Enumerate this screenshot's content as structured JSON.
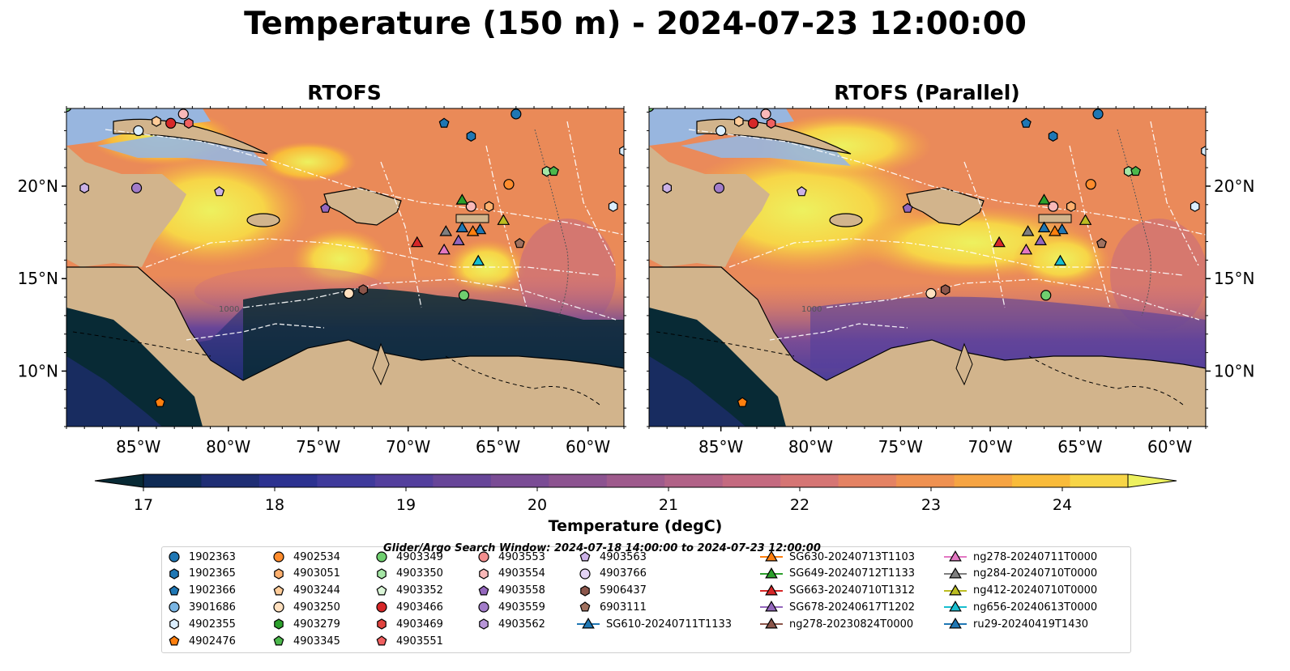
{
  "title": "Temperature (150 m) - 2024-07-23 12:00:00",
  "chart_data": [
    {
      "type": "heatmap",
      "title": "RTOFS",
      "x_ticks": [
        "85°W",
        "80°W",
        "75°W",
        "70°W",
        "65°W",
        "60°W"
      ],
      "x_tick_values": [
        -85,
        -80,
        -75,
        -70,
        -65,
        -60
      ],
      "y_ticks": [
        "20°N",
        "15°N",
        "10°N"
      ],
      "y_tick_values": [
        20,
        15,
        10
      ],
      "xlim": [
        -89,
        -58
      ],
      "ylim": [
        7,
        24.2
      ],
      "contour_label": "1000",
      "gliders": [
        "SG610-20240711T1133",
        "SG630-20240713T1103",
        "SG649-20240712T1133",
        "SG663-20240710T1312",
        "SG678-20240617T1202",
        "ng278-20240711T0000",
        "ng284-20240710T0000",
        "ng412-20240710T0000",
        "ng656-20240613T0000",
        "ru29-20240419T1430"
      ]
    },
    {
      "type": "heatmap",
      "title": "RTOFS (Parallel)",
      "x_ticks": [
        "85°W",
        "80°W",
        "75°W",
        "70°W",
        "65°W",
        "60°W"
      ],
      "x_tick_values": [
        -85,
        -80,
        -75,
        -70,
        -65,
        -60
      ],
      "y_ticks": [
        "20°N",
        "15°N",
        "10°N"
      ],
      "y_tick_values": [
        20,
        15,
        10
      ],
      "xlim": [
        -89,
        -58
      ],
      "ylim": [
        7,
        24.2
      ],
      "contour_label": "1000"
    }
  ],
  "colorbar": {
    "label": "Temperature (degC)",
    "ticks": [
      "17",
      "18",
      "19",
      "20",
      "21",
      "22",
      "23",
      "24"
    ],
    "tick_values": [
      17,
      18,
      19,
      20,
      21,
      22,
      23,
      24
    ],
    "min": 17,
    "max": 24.5,
    "step": 0.5,
    "colors": [
      "#082a35",
      "#0f2b55",
      "#1f2e74",
      "#2c3290",
      "#3f3a9b",
      "#533f9d",
      "#674598",
      "#7a4c95",
      "#8c5390",
      "#9e5a8c",
      "#b16287",
      "#c46a80",
      "#d57574",
      "#e48263",
      "#ef9151",
      "#f6a443",
      "#f9bb3a",
      "#f7d547",
      "#edf15f"
    ]
  },
  "legend": {
    "title": "Glider/Argo Search Window: 2024-07-18 14:00:00 to 2024-07-23 12:00:00",
    "columns": [
      [
        {
          "label": "1902363",
          "marker": "circle",
          "color": "#1f77b4"
        },
        {
          "label": "1902365",
          "marker": "hexagon",
          "color": "#1f77b4"
        },
        {
          "label": "1902366",
          "marker": "pentagon",
          "color": "#1f77b4"
        },
        {
          "label": "3901686",
          "marker": "circle",
          "color": "#7ab5e3"
        },
        {
          "label": "4902355",
          "marker": "hexagon",
          "color": "#dbeeff"
        },
        {
          "label": "4902476",
          "marker": "pentagon",
          "color": "#ff7f0e"
        }
      ],
      [
        {
          "label": "4902534",
          "marker": "circle",
          "color": "#ff8c2d"
        },
        {
          "label": "4903051",
          "marker": "hexagon",
          "color": "#ffb06e"
        },
        {
          "label": "4903244",
          "marker": "pentagon",
          "color": "#ffcc99"
        },
        {
          "label": "4903250",
          "marker": "circle",
          "color": "#ffe0bf"
        },
        {
          "label": "4903279",
          "marker": "hexagon",
          "color": "#2ca02c"
        },
        {
          "label": "4903345",
          "marker": "pentagon",
          "color": "#4cb84c"
        }
      ],
      [
        {
          "label": "4903349",
          "marker": "circle",
          "color": "#6fcf6f"
        },
        {
          "label": "4903350",
          "marker": "hexagon",
          "color": "#a5e6a5"
        },
        {
          "label": "4903352",
          "marker": "pentagon",
          "color": "#dcf7d9"
        },
        {
          "label": "4903466",
          "marker": "circle",
          "color": "#d62728"
        },
        {
          "label": "4903469",
          "marker": "hexagon",
          "color": "#e0443f"
        },
        {
          "label": "4903551",
          "marker": "pentagon",
          "color": "#f06060"
        }
      ],
      [
        {
          "label": "4903553",
          "marker": "circle",
          "color": "#f28e8e"
        },
        {
          "label": "4903554",
          "marker": "hexagon",
          "color": "#f9b8b8"
        },
        {
          "label": "4903558",
          "marker": "pentagon",
          "color": "#9467bd"
        },
        {
          "label": "4903559",
          "marker": "circle",
          "color": "#a27cc9"
        },
        {
          "label": "4903562",
          "marker": "hexagon",
          "color": "#b896d8"
        }
      ],
      [
        {
          "label": "4903563",
          "marker": "pentagon",
          "color": "#cbb1e6"
        },
        {
          "label": "4903766",
          "marker": "circle",
          "color": "#e3d3f5"
        },
        {
          "label": "5906437",
          "marker": "hexagon",
          "color": "#8c564b"
        },
        {
          "label": "6903111",
          "marker": "pentagon",
          "color": "#a0715f"
        },
        {
          "label": "SG610-20240711T1133",
          "marker": "triangle",
          "color": "#1f77b4"
        }
      ],
      [
        {
          "label": "SG630-20240713T1103",
          "marker": "triangle",
          "color": "#ff7f0e"
        },
        {
          "label": "SG649-20240712T1133",
          "marker": "triangle",
          "color": "#2ca02c"
        },
        {
          "label": "SG663-20240710T1312",
          "marker": "triangle",
          "color": "#d62728"
        },
        {
          "label": "SG678-20240617T1202",
          "marker": "triangle",
          "color": "#9467bd"
        },
        {
          "label": "ng278-20230824T0000",
          "marker": "triangle",
          "color": "#8c564b"
        }
      ],
      [
        {
          "label": "ng278-20240711T0000",
          "marker": "triangle",
          "color": "#e377c2"
        },
        {
          "label": "ng284-20240710T0000",
          "marker": "triangle",
          "color": "#7f7f7f"
        },
        {
          "label": "ng412-20240710T0000",
          "marker": "triangle",
          "color": "#bcbd22"
        },
        {
          "label": "ng656-20240613T0000",
          "marker": "triangle",
          "color": "#17becf"
        },
        {
          "label": "ru29-20240419T1430",
          "marker": "triangle",
          "color": "#1f77b4"
        }
      ]
    ]
  }
}
